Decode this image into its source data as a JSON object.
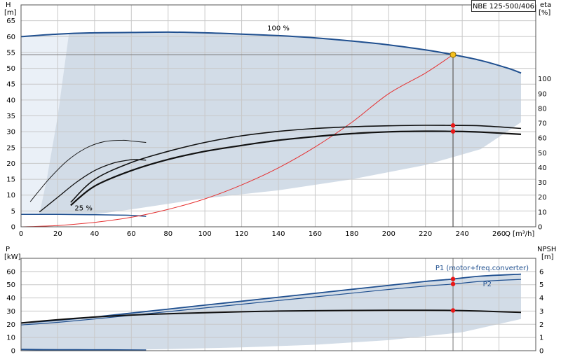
{
  "chart_data": [
    {
      "type": "line",
      "title": "NBE 125-500/406",
      "xlabel": "Q [m³/h]",
      "ylabel_left_name": "H",
      "ylabel_left_unit": "[m]",
      "ylabel_right_name": "eta",
      "ylabel_right_unit": "[%]",
      "xlim": [
        0,
        280
      ],
      "ylim": [
        0,
        70
      ],
      "xticks": [
        0,
        20,
        40,
        60,
        80,
        100,
        120,
        140,
        160,
        180,
        200,
        220,
        240,
        260
      ],
      "yticks_left": [
        0,
        5,
        10,
        15,
        20,
        25,
        30,
        35,
        40,
        45,
        50,
        55,
        60,
        65
      ],
      "yticks_right": [
        0,
        10,
        20,
        30,
        40,
        50,
        60,
        70,
        80,
        90,
        100
      ],
      "right_axis_range": [
        0,
        150
      ],
      "grid": true,
      "annotations": [
        "100 %",
        "25 %"
      ],
      "duty_point": {
        "x": 235,
        "y": 54.3,
        "eta_upper": 68.5,
        "eta_lower": 64.5
      },
      "series": [
        {
          "name": "",
          "x": [
            0,
            20,
            40,
            60,
            80,
            100,
            120,
            140,
            160,
            180,
            200,
            220,
            235,
            250,
            265,
            272
          ],
          "y": [
            60,
            60.8,
            61.2,
            61.3,
            61.4,
            61.2,
            60.8,
            60.3,
            59.6,
            58.6,
            57.4,
            55.8,
            54.3,
            52.5,
            50,
            48.5
          ]
        },
        {
          "name": "",
          "x": [
            0,
            20,
            40,
            60,
            68
          ],
          "y": [
            3.9,
            3.9,
            3.8,
            3.6,
            3.3
          ]
        },
        {
          "name": "",
          "x": [
            0,
            20,
            40,
            60,
            80,
            100,
            120,
            140,
            160,
            180,
            200,
            220,
            235
          ],
          "y": [
            0,
            0.4,
            1.4,
            3,
            5.5,
            8.8,
            13.2,
            18.6,
            25.2,
            33,
            42,
            48.5,
            54.3
          ]
        },
        {
          "name": "",
          "x": [
            27,
            40,
            60,
            80,
            100,
            120,
            140,
            160,
            180,
            200,
            220,
            235,
            250,
            272
          ],
          "y": [
            16.5,
            32,
            43.5,
            51,
            57,
            61.5,
            64.5,
            66.5,
            67.6,
            68.3,
            68.6,
            68.5,
            68.3,
            66.5
          ]
        },
        {
          "name": "",
          "x": [
            27,
            40,
            60,
            80,
            100,
            120,
            140,
            160,
            180,
            200,
            220,
            235,
            250,
            272
          ],
          "y": [
            14.5,
            27.5,
            38,
            45.5,
            51,
            55,
            58.5,
            61,
            63,
            64.2,
            64.6,
            64.5,
            64,
            62.5
          ]
        },
        {
          "name": "",
          "x": [
            5,
            15,
            25,
            35,
            45,
            55,
            60,
            68
          ],
          "y": [
            17,
            32,
            44.5,
            53,
            57.5,
            58.5,
            58,
            57
          ]
        },
        {
          "name": "",
          "x": [
            10,
            20,
            30,
            40,
            50,
            58,
            62,
            68
          ],
          "y": [
            10,
            20,
            30,
            38,
            43,
            45,
            45.5,
            45
          ]
        }
      ]
    },
    {
      "type": "line",
      "ylabel_left_name": "P",
      "ylabel_left_unit": "[kW]",
      "ylabel_right_name": "NPSH",
      "ylabel_right_unit": "[m]",
      "xlim": [
        0,
        280
      ],
      "ylim": [
        0,
        70
      ],
      "yticks_left": [
        0,
        10,
        20,
        30,
        40,
        50,
        60
      ],
      "yticks_right": [
        0,
        1,
        2,
        3,
        4,
        5,
        6
      ],
      "right_axis_range": [
        0,
        7
      ],
      "grid": true,
      "duty_point": {
        "x": 235,
        "p1": 54.3,
        "p2": 50.5,
        "npsh": 3.05
      },
      "series": [
        {
          "name": "P1 (motor+freq.converter)",
          "x": [
            0,
            20,
            40,
            60,
            80,
            100,
            120,
            140,
            160,
            180,
            200,
            220,
            235,
            250,
            272
          ],
          "y": [
            21,
            23,
            25.5,
            28.5,
            31.5,
            34.5,
            37.5,
            40.5,
            43.5,
            46.5,
            49.5,
            52.5,
            54.3,
            56.5,
            58
          ]
        },
        {
          "name": "P2",
          "x": [
            0,
            20,
            40,
            60,
            80,
            100,
            120,
            140,
            160,
            180,
            200,
            220,
            235,
            250,
            272
          ],
          "y": [
            19.5,
            21.5,
            24,
            26.8,
            29.6,
            32.4,
            35.2,
            38,
            40.8,
            43.6,
            46.4,
            49,
            50.5,
            52.5,
            54
          ]
        },
        {
          "name": "",
          "x": [
            0,
            20,
            40,
            60,
            80,
            100,
            120,
            140,
            160,
            180,
            200,
            220,
            235,
            250,
            272
          ],
          "y": [
            2.1,
            2.35,
            2.55,
            2.7,
            2.8,
            2.88,
            2.95,
            3.0,
            3.03,
            3.05,
            3.06,
            3.06,
            3.05,
            3.0,
            2.9
          ]
        },
        {
          "name": "",
          "x": [
            0,
            20,
            40,
            60,
            68
          ],
          "y": [
            0.9,
            0.7,
            0.6,
            0.5,
            0.4
          ]
        }
      ]
    }
  ]
}
